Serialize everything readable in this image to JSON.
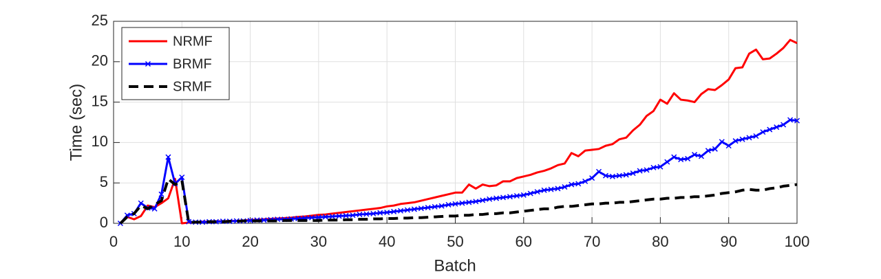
{
  "chart_data": {
    "type": "line",
    "xlabel": "Batch",
    "ylabel": "Time (sec)",
    "x": [
      1,
      2,
      3,
      4,
      5,
      6,
      7,
      8,
      9,
      10,
      11,
      12,
      13,
      14,
      15,
      16,
      17,
      18,
      19,
      20,
      21,
      22,
      23,
      24,
      25,
      26,
      27,
      28,
      29,
      30,
      31,
      32,
      33,
      34,
      35,
      36,
      37,
      38,
      39,
      40,
      41,
      42,
      43,
      44,
      45,
      46,
      47,
      48,
      49,
      50,
      51,
      52,
      53,
      54,
      55,
      56,
      57,
      58,
      59,
      60,
      61,
      62,
      63,
      64,
      65,
      66,
      67,
      68,
      69,
      70,
      71,
      72,
      73,
      74,
      75,
      76,
      77,
      78,
      79,
      80,
      81,
      82,
      83,
      84,
      85,
      86,
      87,
      88,
      89,
      90,
      91,
      92,
      93,
      94,
      95,
      96,
      97,
      98,
      99,
      100
    ],
    "series": [
      {
        "name": "NRMF",
        "color": "#ff0000",
        "linestyle": "solid",
        "marker": "none",
        "values": [
          0,
          0.8,
          0.5,
          0.9,
          2.2,
          2.0,
          2.5,
          3.1,
          5.5,
          0,
          0.1,
          0.15,
          0.2,
          0.2,
          0.25,
          0.25,
          0.3,
          0.3,
          0.35,
          0.4,
          0.45,
          0.5,
          0.55,
          0.6,
          0.65,
          0.7,
          0.8,
          0.85,
          0.95,
          1.05,
          1.1,
          1.2,
          1.3,
          1.4,
          1.5,
          1.6,
          1.7,
          1.8,
          1.9,
          2.1,
          2.2,
          2.4,
          2.5,
          2.6,
          2.8,
          3.0,
          3.2,
          3.4,
          3.6,
          3.8,
          3.8,
          4.8,
          4.3,
          4.8,
          4.6,
          4.7,
          5.2,
          5.2,
          5.6,
          5.8,
          6.0,
          6.3,
          6.5,
          6.8,
          7.2,
          7.4,
          8.7,
          8.3,
          9.0,
          9.1,
          9.2,
          9.6,
          9.8,
          10.4,
          10.6,
          11.5,
          12.2,
          13.3,
          13.9,
          15.3,
          14.8,
          16.1,
          15.3,
          15.2,
          15.0,
          16.0,
          16.6,
          16.5,
          17.1,
          17.8,
          19.2,
          19.3,
          21.0,
          21.5,
          20.3,
          20.4,
          21.0,
          21.7,
          22.7,
          22.3
        ]
      },
      {
        "name": "BRMF",
        "color": "#0000ff",
        "linestyle": "solid",
        "marker": "x",
        "values": [
          0,
          1.0,
          1.2,
          2.5,
          1.9,
          1.8,
          3.6,
          8.2,
          4.9,
          5.7,
          0.2,
          0.15,
          0.15,
          0.2,
          0.2,
          0.25,
          0.25,
          0.3,
          0.3,
          0.35,
          0.4,
          0.4,
          0.45,
          0.5,
          0.5,
          0.55,
          0.6,
          0.65,
          0.7,
          0.75,
          0.8,
          0.85,
          0.9,
          0.95,
          1.0,
          1.1,
          1.15,
          1.2,
          1.3,
          1.35,
          1.45,
          1.55,
          1.65,
          1.75,
          1.85,
          1.95,
          2.05,
          2.15,
          2.3,
          2.4,
          2.5,
          2.6,
          2.7,
          2.85,
          3.0,
          3.1,
          3.2,
          3.3,
          3.4,
          3.5,
          3.7,
          3.9,
          4.1,
          4.2,
          4.3,
          4.5,
          4.8,
          4.9,
          5.2,
          5.6,
          6.4,
          5.9,
          5.8,
          5.9,
          6.0,
          6.2,
          6.5,
          6.6,
          6.9,
          7.0,
          7.6,
          8.2,
          7.9,
          8.0,
          8.5,
          8.3,
          9.0,
          9.2,
          10.1,
          9.6,
          10.2,
          10.4,
          10.6,
          10.8,
          11.3,
          11.6,
          11.9,
          12.2,
          12.8,
          12.7
        ]
      },
      {
        "name": "SRMF",
        "color": "#000000",
        "linestyle": "dashed",
        "marker": "none",
        "values": [
          0,
          0.8,
          1.2,
          2.2,
          1.8,
          2.3,
          2.8,
          5.5,
          4.8,
          5.3,
          0.1,
          0.15,
          0.15,
          0.2,
          0.2,
          0.2,
          0.25,
          0.25,
          0.3,
          0.3,
          0.3,
          0.3,
          0.3,
          0.3,
          0.35,
          0.35,
          0.35,
          0.35,
          0.35,
          0.35,
          0.4,
          0.4,
          0.4,
          0.45,
          0.45,
          0.5,
          0.5,
          0.55,
          0.55,
          0.6,
          0.6,
          0.65,
          0.65,
          0.7,
          0.7,
          0.75,
          0.8,
          0.85,
          0.9,
          0.9,
          1.0,
          1.0,
          1.1,
          1.1,
          1.2,
          1.2,
          1.3,
          1.3,
          1.4,
          1.5,
          1.6,
          1.7,
          1.8,
          1.8,
          2.0,
          2.1,
          2.1,
          2.2,
          2.3,
          2.4,
          2.4,
          2.5,
          2.5,
          2.6,
          2.6,
          2.7,
          2.8,
          2.9,
          3.0,
          3.0,
          3.1,
          3.1,
          3.2,
          3.2,
          3.3,
          3.3,
          3.4,
          3.5,
          3.7,
          3.8,
          3.9,
          4.1,
          4.2,
          4.1,
          4.1,
          4.3,
          4.4,
          4.6,
          4.7,
          4.8
        ]
      }
    ],
    "xlim": [
      0,
      100
    ],
    "xticks": [
      0,
      10,
      20,
      30,
      40,
      50,
      60,
      70,
      80,
      90,
      100
    ],
    "ylim": [
      0,
      25
    ],
    "yticks": [
      0,
      5,
      10,
      15,
      20,
      25
    ],
    "grid": true,
    "legend": "upper left"
  }
}
